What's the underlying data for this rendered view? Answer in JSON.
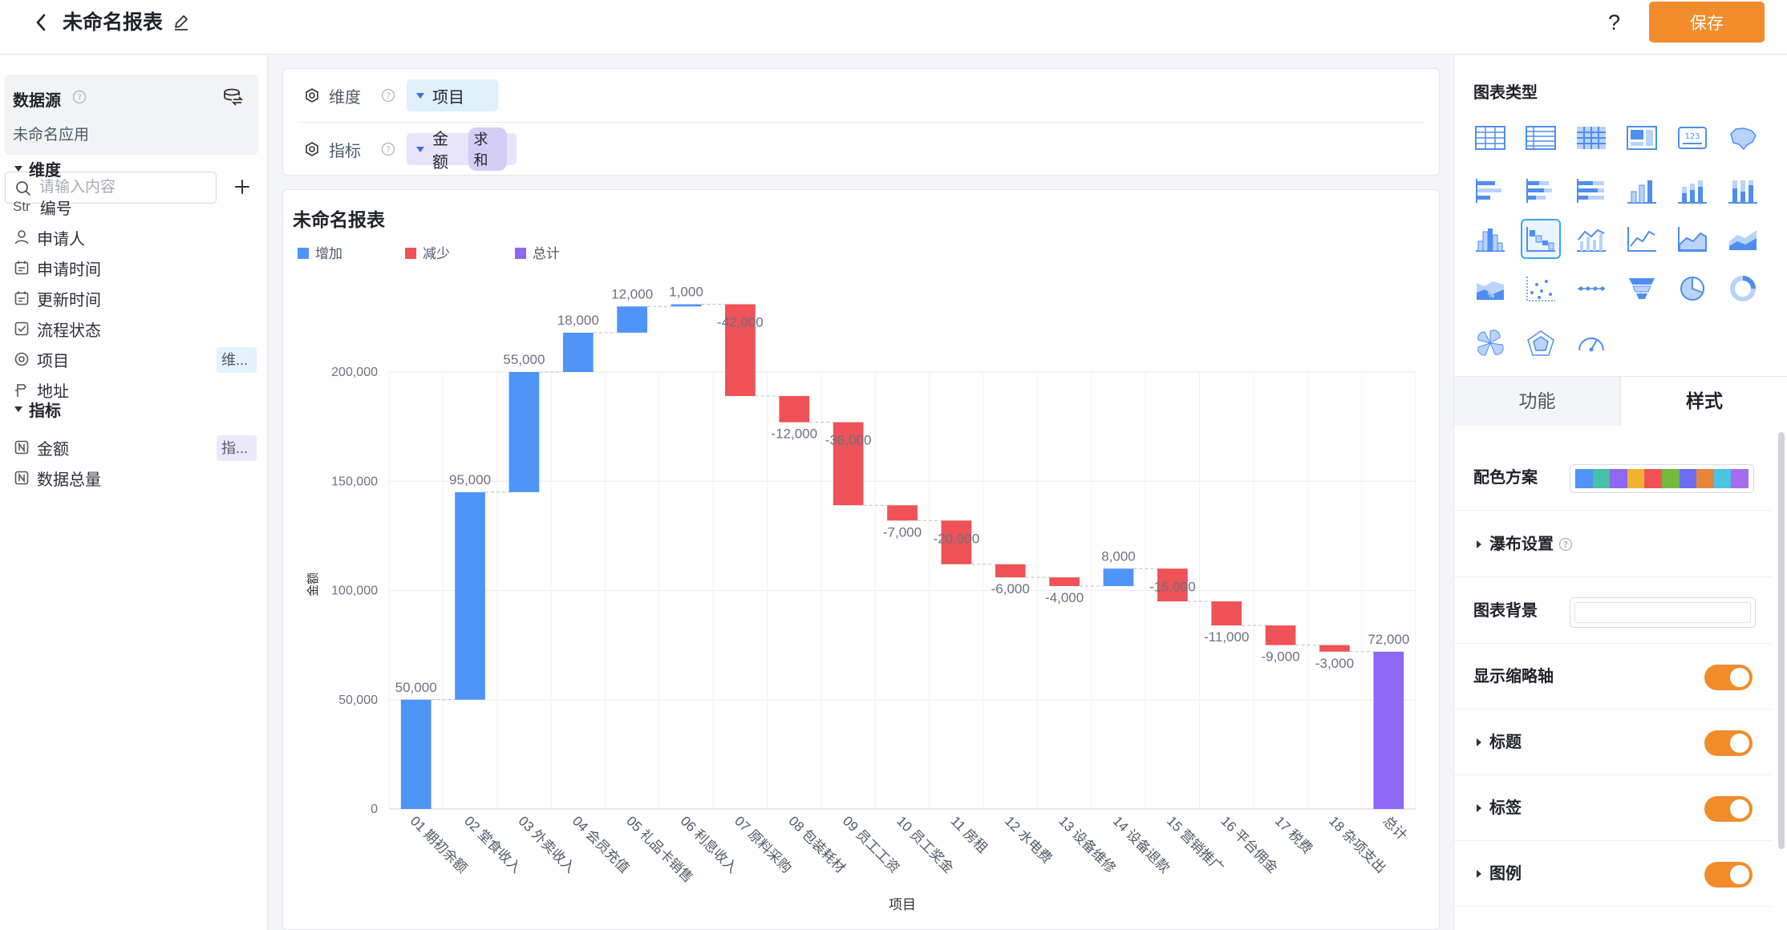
{
  "header": {
    "title": "未命名报表",
    "help": "?",
    "save_label": "保存"
  },
  "datasource": {
    "title": "数据源",
    "app_name": "未命名应用"
  },
  "search": {
    "placeholder": "请输入内容"
  },
  "left": {
    "dimension_title": "维度",
    "measure_title": "指标",
    "dimensions": [
      {
        "icon": "Str",
        "label": "编号"
      },
      {
        "icon": "user-icon",
        "label": "申请人"
      },
      {
        "icon": "calendar-icon",
        "label": "申请时间"
      },
      {
        "icon": "calendar-icon",
        "label": "更新时间"
      },
      {
        "icon": "checkbox-icon",
        "label": "流程状态"
      },
      {
        "icon": "radio-icon",
        "label": "项目",
        "tag": "维..."
      },
      {
        "icon": "location-icon",
        "label": "地址"
      }
    ],
    "measures": [
      {
        "icon": "number-icon",
        "label": "金额",
        "tag": "指..."
      },
      {
        "icon": "number-icon",
        "label": "数据总量"
      }
    ]
  },
  "config": {
    "dimension_label": "维度",
    "dimension_value": "项目",
    "measure_label": "指标",
    "measure_value": "金额",
    "measure_agg": "求和"
  },
  "chart_data": {
    "type": "waterfall",
    "title": "未命名报表",
    "xlabel": "项目",
    "ylabel": "金额",
    "ylim": [
      0,
      250000
    ],
    "yticks": [
      0,
      50000,
      100000,
      150000,
      200000
    ],
    "legend": [
      {
        "name": "增加",
        "color": "#4f94f7"
      },
      {
        "name": "减少",
        "color": "#ef5257"
      },
      {
        "name": "总计",
        "color": "#8e68f3"
      }
    ],
    "legend_position": "top-left",
    "grid": true,
    "categories": [
      "01 期初余额",
      "02 堂食收入",
      "03 外卖收入",
      "04 会员充值",
      "05 礼品卡销售",
      "06 利息收入",
      "07 原料采购",
      "08 包装耗材",
      "09 员工工资",
      "10 员工奖金",
      "11 房租",
      "12 水电费",
      "13 设备维修",
      "14 设备退款",
      "15 营销推广",
      "16 平台佣金",
      "17 税费",
      "18 杂项支出",
      "总计"
    ],
    "values": [
      50000,
      95000,
      55000,
      18000,
      12000,
      1000,
      -42000,
      -12000,
      -38000,
      -7000,
      -20000,
      -6000,
      -4000,
      8000,
      -15000,
      -11000,
      -9000,
      -3000,
      72000
    ],
    "labels": [
      "50,000",
      "95,000",
      "55,000",
      "18,000",
      "12,000",
      "1,000",
      "-42,000",
      "-12,000",
      "-38,000",
      "-7,000",
      "-20,000",
      "-6,000",
      "-4,000",
      "8,000",
      "-15,000",
      "-11,000",
      "-9,000",
      "-3,000",
      "72,000"
    ],
    "ytick_labels": [
      "0",
      "50,000",
      "100,000",
      "150,000",
      "200,000"
    ]
  },
  "right": {
    "chart_type_title": "图表类型",
    "selected_chart_type": "waterfall",
    "chart_types": [
      "table-icon",
      "detail-table-icon",
      "pivot-icon",
      "kpi-card-icon",
      "number-card-icon",
      "map-icon",
      "bar-icon",
      "stacked-bar-icon",
      "percent-bar-icon",
      "column-icon",
      "stacked-column-icon",
      "percent-column-icon",
      "histogram-icon",
      "waterfall-icon",
      "line-column-icon",
      "line-icon",
      "area-icon",
      "stacked-area-icon",
      "percent-area-icon",
      "scatter-icon",
      "dumbbell-icon",
      "funnel-icon",
      "pie-icon",
      "donut-icon",
      "rose-icon",
      "radar-icon",
      "gauge-icon"
    ],
    "tab_function": "功能",
    "tab_style": "样式",
    "color_scheme_label": "配色方案",
    "palette": [
      "#4f94f7",
      "#46c0a6",
      "#8e68f3",
      "#f2b02f",
      "#ef5257",
      "#73bb3e",
      "#6b6ef0",
      "#e8853c",
      "#4cc3e0",
      "#a56cf0"
    ],
    "waterfall_setting": "瀑布设置",
    "bg_label": "图表背景",
    "thumbnail_axis": "显示缩略轴",
    "title_label": "标题",
    "tag_label": "标签",
    "legend_label": "图例"
  }
}
